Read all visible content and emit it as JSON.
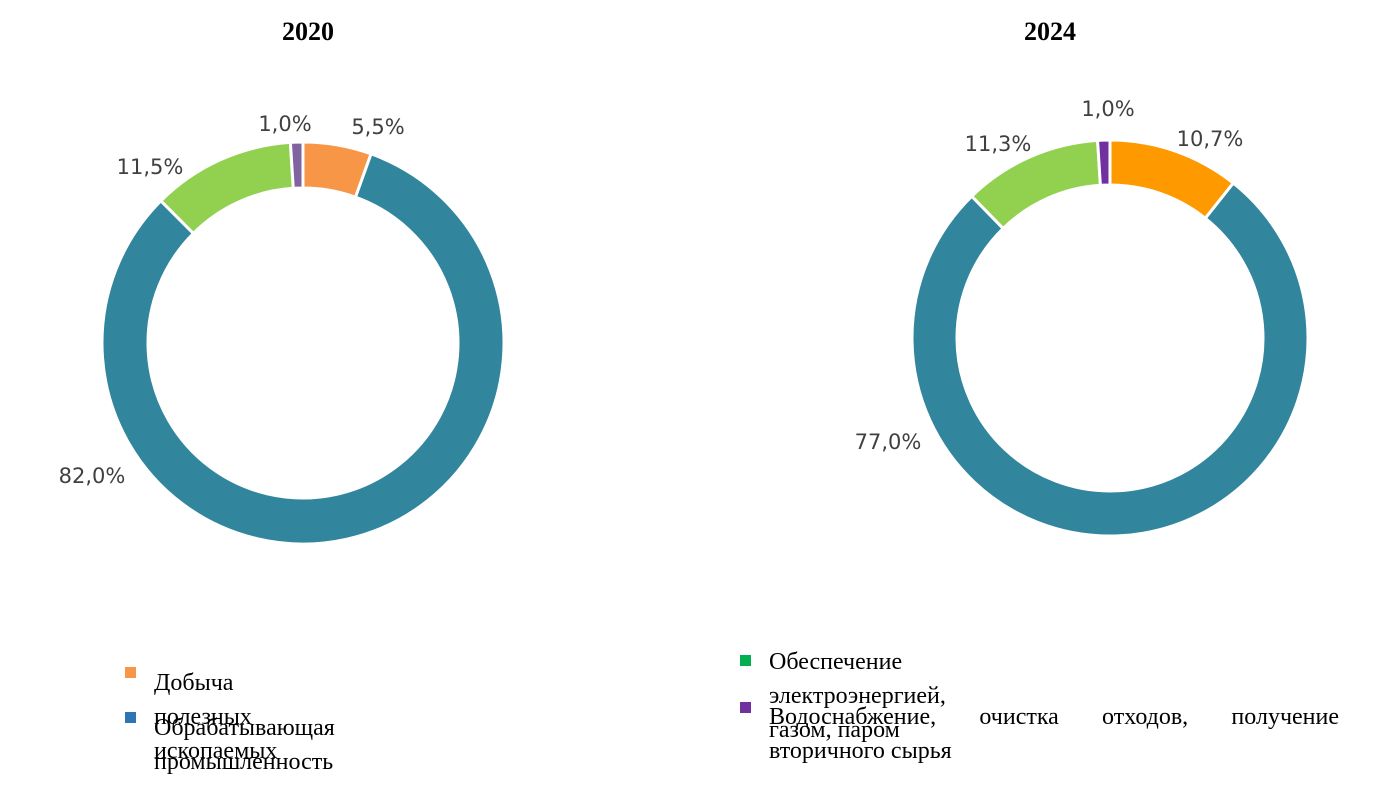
{
  "chart_data": [
    {
      "type": "pie",
      "subtype": "donut",
      "title": "2020",
      "slices": [
        {
          "series": 0,
          "value": 5.5,
          "label": "5,5%",
          "color": "#F79646"
        },
        {
          "series": 1,
          "value": 82.0,
          "label": "82,0%",
          "color": "#31859C"
        },
        {
          "series": 2,
          "value": 11.5,
          "label": "11,5%",
          "color": "#92D050"
        },
        {
          "series": 3,
          "value": 1.0,
          "label": "1,0%",
          "color": "#8064A2"
        }
      ]
    },
    {
      "type": "pie",
      "subtype": "donut",
      "title": "2024",
      "slices": [
        {
          "series": 0,
          "value": 10.7,
          "label": "10,7%",
          "color": "#FF9900"
        },
        {
          "series": 1,
          "value": 77.0,
          "label": "77,0%",
          "color": "#31859C"
        },
        {
          "series": 2,
          "value": 11.3,
          "label": "11,3%",
          "color": "#92D050"
        },
        {
          "series": 3,
          "value": 1.0,
          "label": "1,0%",
          "color": "#7030A0"
        }
      ]
    }
  ],
  "legend": [
    {
      "label": "Добыча полезных ископаемых",
      "color": "#F79646"
    },
    {
      "label": "Обрабатывающая промышленность",
      "color": "#2E75B6"
    },
    {
      "label": "Обеспечение электроэнергией, газом, паром",
      "color": "#00B050"
    },
    {
      "label": "Водоснабжение, очистка отходов, получение вторичного сырья",
      "color": "#7030A0"
    }
  ]
}
